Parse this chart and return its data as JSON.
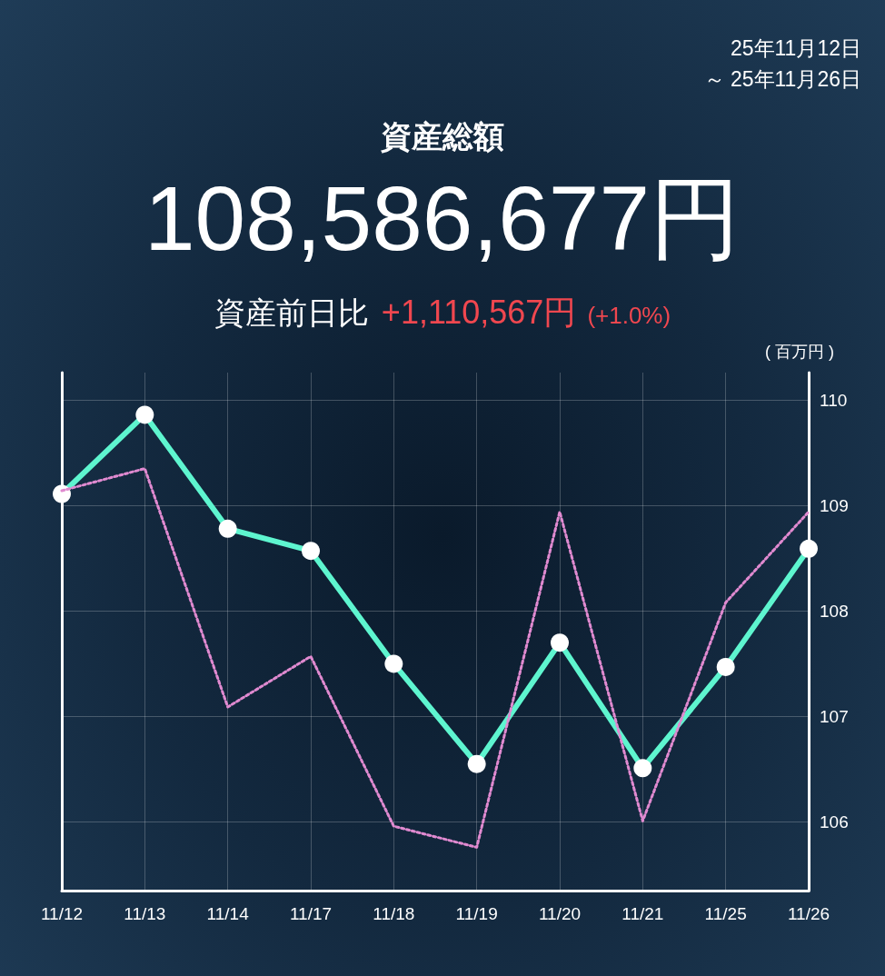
{
  "chart_data": {
    "type": "line",
    "title": "資産総額",
    "subtitle": "108,586,677円",
    "ylabel": "( 百万円 )",
    "annotations": [
      "25年11月12日",
      "～ 25年11月26日",
      "資産前日比",
      "+1,110,567円",
      "(+1.0%)"
    ],
    "categories": [
      "11/12",
      "11/13",
      "11/14",
      "11/17",
      "11/18",
      "11/19",
      "11/20",
      "11/21",
      "11/25",
      "11/26"
    ],
    "series": [
      {
        "color": "#e08ad0",
        "line_style": "dotted",
        "marker": "none",
        "values": [
          109.14,
          109.35,
          107.09,
          107.57,
          105.96,
          105.76,
          108.94,
          106.01,
          108.08,
          108.94
        ]
      },
      {
        "color": "#5ef5cf",
        "line_style": "solid",
        "marker": "circle",
        "values": [
          109.11,
          109.86,
          108.78,
          108.57,
          107.5,
          106.55,
          107.7,
          106.51,
          107.47,
          108.59
        ]
      }
    ],
    "ylim": [
      105.35,
      110.26
    ],
    "yticks": [
      106,
      107,
      108,
      109,
      110
    ],
    "grid": true
  }
}
